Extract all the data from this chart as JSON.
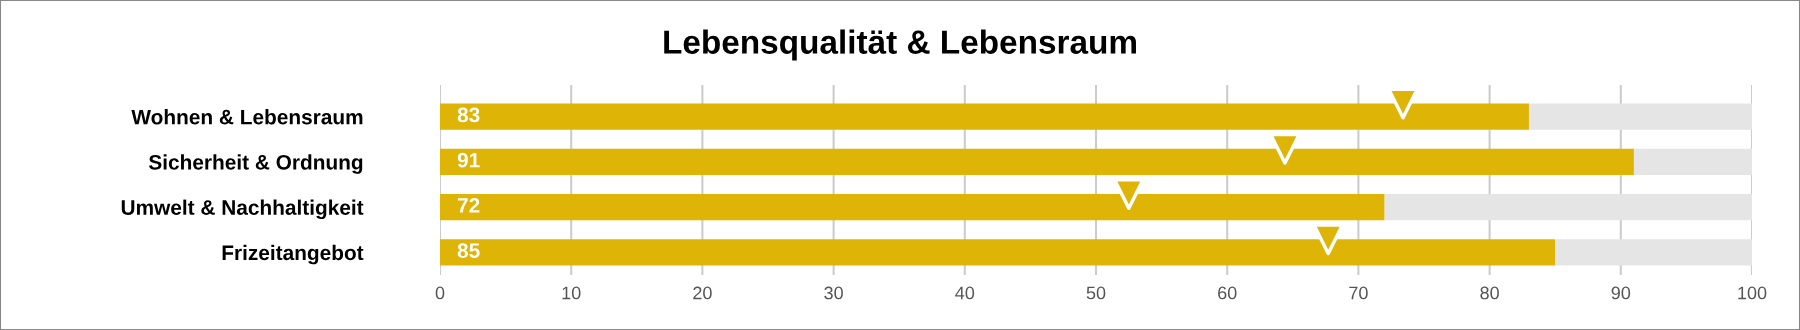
{
  "chart_data": {
    "type": "bar",
    "orientation": "horizontal",
    "title": "Lebensqualität & Lebensraum",
    "categories": [
      "Wohnen & Lebensraum",
      "Sicherheit & Ordnung",
      "Umwelt & Nachhaltigkeit",
      "Frizeitangebot"
    ],
    "series": [
      {
        "color": "#deb406",
        "values": [
          83,
          91,
          72,
          85
        ],
        "value_labels": [
          "83",
          "91",
          "72",
          "85"
        ]
      },
      {
        "color": "#e5e5e5",
        "values": [
          17,
          9,
          28,
          15
        ]
      },
      {
        "type": "scatter",
        "color": "#deb406",
        "marker": "triangle",
        "values": [
          73.4,
          64.4,
          52.5,
          67.7
        ]
      }
    ],
    "stacked": true,
    "xlim": [
      0,
      100
    ],
    "xticks": [
      0,
      10,
      20,
      30,
      40,
      50,
      60,
      70,
      80,
      90,
      100
    ],
    "grid": "x"
  }
}
